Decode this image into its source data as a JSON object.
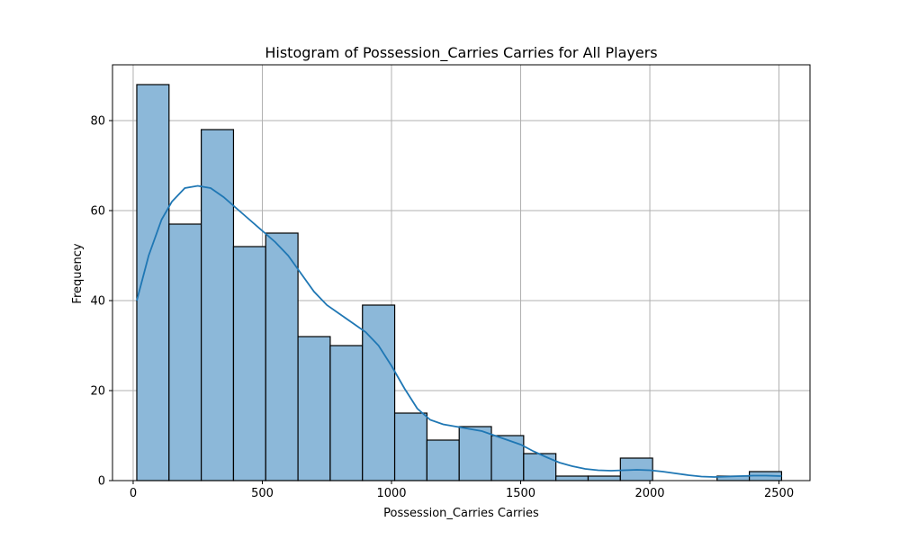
{
  "chart_data": {
    "type": "bar",
    "title": "Histogram of Possession_Carries Carries for All Players",
    "xlabel": "Possession_Carries Carries",
    "ylabel": "Frequency",
    "xlim": [
      -80,
      2620
    ],
    "ylim": [
      0,
      92.4
    ],
    "x_ticks": [
      0,
      500,
      1000,
      1500,
      2000,
      2500
    ],
    "y_ticks": [
      0,
      20,
      40,
      60,
      80
    ],
    "grid": true,
    "bin_edges": [
      14,
      138.8,
      263.6,
      388.4,
      513.2,
      638,
      762.8,
      887.6,
      1012.4,
      1137.2,
      1262,
      1386.8,
      1511.6,
      1636.4,
      1761.2,
      1886,
      2010.8,
      2135.6,
      2260.4,
      2385.2,
      2510
    ],
    "values": [
      88,
      57,
      78,
      52,
      55,
      32,
      30,
      39,
      15,
      9,
      12,
      10,
      6,
      1,
      1,
      5,
      0,
      0,
      1,
      2
    ],
    "kde": {
      "x": [
        14,
        60,
        110,
        150,
        200,
        250,
        300,
        350,
        400,
        450,
        500,
        550,
        600,
        650,
        700,
        750,
        800,
        850,
        900,
        950,
        1000,
        1050,
        1100,
        1150,
        1200,
        1250,
        1300,
        1350,
        1400,
        1450,
        1500,
        1550,
        1600,
        1650,
        1700,
        1750,
        1800,
        1850,
        1900,
        1950,
        2000,
        2050,
        2100,
        2150,
        2200,
        2250,
        2300,
        2350,
        2400,
        2450,
        2510
      ],
      "y": [
        40,
        50,
        58,
        62,
        65,
        65.5,
        65,
        63,
        60.5,
        58,
        55.5,
        53,
        50,
        46,
        42,
        39,
        37,
        35,
        33,
        30,
        25.5,
        20.5,
        16,
        13.5,
        12.5,
        12,
        11.5,
        11,
        10,
        9,
        8,
        6.5,
        5.2,
        4,
        3.2,
        2.6,
        2.3,
        2.2,
        2.3,
        2.4,
        2.3,
        2,
        1.6,
        1.2,
        0.9,
        0.8,
        0.9,
        1,
        1.1,
        1.1,
        1
      ]
    },
    "colors": {
      "bar_fill": "#8cb8d9",
      "bar_edge": "#000000",
      "kde_line": "#1f77b4",
      "grid": "#b0b0b0"
    }
  }
}
